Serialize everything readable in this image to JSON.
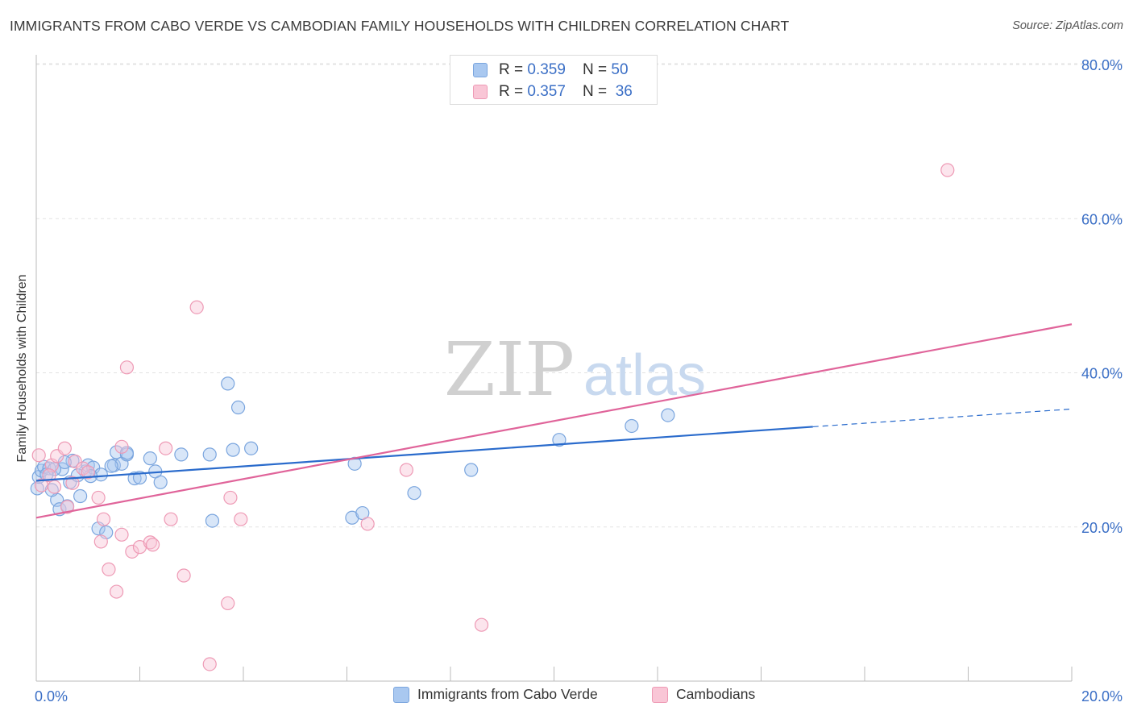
{
  "title": "IMMIGRANTS FROM CABO VERDE VS CAMBODIAN FAMILY HOUSEHOLDS WITH CHILDREN CORRELATION CHART",
  "source": "Source: ZipAtlas.com",
  "watermark": {
    "zip": "ZIP",
    "atlas": "atlas"
  },
  "legend_top": [
    {
      "r_label": "R = ",
      "r_value": "0.359",
      "n_label": "N = ",
      "n_value": "50",
      "color": "#a9c8f0",
      "border": "#7aa5de"
    },
    {
      "r_label": "R = ",
      "r_value": "0.357",
      "n_label": "N = ",
      "n_value": "36",
      "color": "#f9c6d6",
      "border": "#ee9ab5"
    }
  ],
  "legend_bottom": [
    {
      "label": "Immigrants from Cabo Verde",
      "color": "#a9c8f0",
      "border": "#7aa5de"
    },
    {
      "label": "Cambodians",
      "color": "#f9c6d6",
      "border": "#ee9ab5"
    }
  ],
  "chart_data": {
    "type": "scatter",
    "title": "IMMIGRANTS FROM CABO VERDE VS CAMBODIAN FAMILY HOUSEHOLDS WITH CHILDREN CORRELATION CHART",
    "xlabel": "",
    "ylabel": "Family Households with Children",
    "xlim": [
      0,
      20
    ],
    "ylim": [
      0,
      80
    ],
    "x_tick_labels": [
      "0.0%",
      "20.0%"
    ],
    "y_ticks": [
      20,
      40,
      60,
      80
    ],
    "y_tick_labels": [
      "20.0%",
      "40.0%",
      "60.0%",
      "80.0%"
    ],
    "series": [
      {
        "name": "Immigrants from Cabo Verde",
        "color": "#7aa5de",
        "fill": "rgba(169,200,240,0.45)",
        "line_color": "#2a6bcc",
        "trend": {
          "x0": 0,
          "y0": 26.0,
          "x1": 15.0,
          "y1": 33.0,
          "dash_to_x": 20,
          "dash_to_y": 35.3
        },
        "points": [
          [
            0.02,
            25.0
          ],
          [
            0.05,
            26.5
          ],
          [
            0.1,
            27.3
          ],
          [
            0.15,
            27.8
          ],
          [
            0.25,
            27.6
          ],
          [
            0.4,
            23.5
          ],
          [
            0.45,
            22.3
          ],
          [
            0.5,
            27.5
          ],
          [
            0.6,
            22.7
          ],
          [
            0.7,
            28.6
          ],
          [
            0.85,
            24.0
          ],
          [
            0.95,
            27.2
          ],
          [
            1.0,
            28.0
          ],
          [
            1.1,
            27.7
          ],
          [
            1.25,
            26.8
          ],
          [
            1.5,
            28.0
          ],
          [
            1.55,
            29.7
          ],
          [
            1.65,
            28.2
          ],
          [
            1.75,
            29.4
          ],
          [
            1.9,
            26.3
          ],
          [
            2.0,
            26.4
          ],
          [
            2.2,
            28.9
          ],
          [
            2.3,
            27.2
          ],
          [
            2.4,
            25.8
          ],
          [
            1.75,
            29.6
          ],
          [
            2.8,
            29.4
          ],
          [
            3.7,
            38.6
          ],
          [
            3.9,
            35.5
          ],
          [
            3.8,
            30.0
          ],
          [
            4.15,
            30.2
          ],
          [
            0.65,
            25.8
          ],
          [
            0.35,
            27.5
          ],
          [
            1.2,
            19.8
          ],
          [
            1.35,
            19.3
          ],
          [
            3.4,
            20.8
          ],
          [
            3.35,
            29.4
          ],
          [
            6.15,
            28.2
          ],
          [
            6.1,
            21.2
          ],
          [
            6.3,
            21.8
          ],
          [
            7.3,
            24.4
          ],
          [
            8.4,
            27.4
          ],
          [
            10.1,
            31.3
          ],
          [
            11.5,
            33.1
          ],
          [
            12.2,
            34.5
          ],
          [
            0.3,
            24.8
          ],
          [
            0.55,
            28.4
          ],
          [
            1.45,
            27.9
          ],
          [
            1.05,
            26.6
          ],
          [
            0.2,
            26.8
          ],
          [
            0.8,
            26.7
          ]
        ]
      },
      {
        "name": "Cambodians",
        "color": "#ee9ab5",
        "fill": "rgba(249,198,214,0.45)",
        "line_color": "#e0649a",
        "trend": {
          "x0": 0,
          "y0": 21.2,
          "x1": 20,
          "y1": 46.3
        },
        "points": [
          [
            0.05,
            29.3
          ],
          [
            0.1,
            25.4
          ],
          [
            0.3,
            28.0
          ],
          [
            0.4,
            29.2
          ],
          [
            0.55,
            30.2
          ],
          [
            0.7,
            25.7
          ],
          [
            0.75,
            28.5
          ],
          [
            0.9,
            27.6
          ],
          [
            1.2,
            23.8
          ],
          [
            1.3,
            21.0
          ],
          [
            1.25,
            18.1
          ],
          [
            1.4,
            14.5
          ],
          [
            1.55,
            11.6
          ],
          [
            1.65,
            19.0
          ],
          [
            1.75,
            40.7
          ],
          [
            1.85,
            16.8
          ],
          [
            2.0,
            17.4
          ],
          [
            2.2,
            18.0
          ],
          [
            2.5,
            30.2
          ],
          [
            2.6,
            21.0
          ],
          [
            2.85,
            13.7
          ],
          [
            3.1,
            48.5
          ],
          [
            3.35,
            2.2
          ],
          [
            3.7,
            10.1
          ],
          [
            3.75,
            23.8
          ],
          [
            3.95,
            21.0
          ],
          [
            6.4,
            20.4
          ],
          [
            7.15,
            27.4
          ],
          [
            8.6,
            7.3
          ],
          [
            17.6,
            66.3
          ],
          [
            1.65,
            30.4
          ],
          [
            1.0,
            27.1
          ],
          [
            0.25,
            26.7
          ],
          [
            0.6,
            22.6
          ],
          [
            2.25,
            17.7
          ],
          [
            0.35,
            25.2
          ]
        ]
      }
    ]
  }
}
